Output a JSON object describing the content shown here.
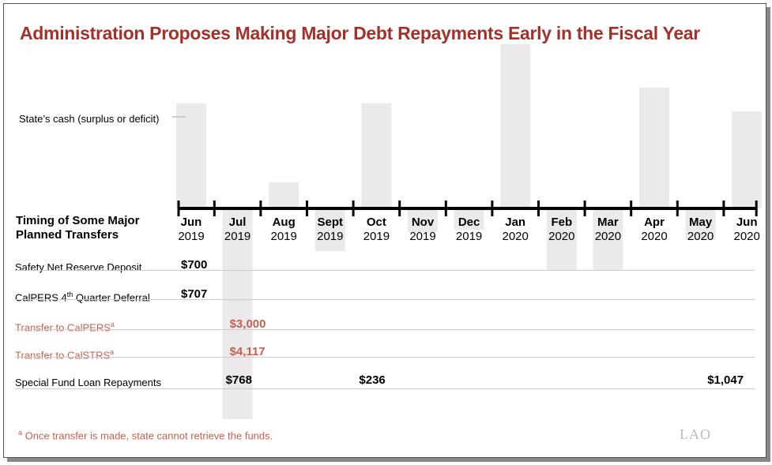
{
  "title": "Administration Proposes Making Major Debt Repayments Early in the Fiscal Year",
  "legend_label": "State’s cash (surplus or deficit)",
  "table_heading": [
    "Timing of Some Major",
    "Planned Transfers"
  ],
  "months": [
    {
      "m": "Jun",
      "y": "2019"
    },
    {
      "m": "Jul",
      "y": "2019"
    },
    {
      "m": "Aug",
      "y": "2019"
    },
    {
      "m": "Sept",
      "y": "2019"
    },
    {
      "m": "Oct",
      "y": "2019"
    },
    {
      "m": "Nov",
      "y": "2019"
    },
    {
      "m": "Dec",
      "y": "2019"
    },
    {
      "m": "Jan",
      "y": "2020"
    },
    {
      "m": "Feb",
      "y": "2020"
    },
    {
      "m": "Mar",
      "y": "2020"
    },
    {
      "m": "Apr",
      "y": "2020"
    },
    {
      "m": "May",
      "y": "2020"
    },
    {
      "m": "Jun",
      "y": "2020"
    }
  ],
  "rows": [
    {
      "label": "Safety Net Reserve Deposit",
      "sup": "",
      "color": "black",
      "values": {
        "0": "$700"
      }
    },
    {
      "label": "CalPERS 4",
      "sup": "th",
      "label_after": " Quarter Deferral",
      "color": "black",
      "values": {
        "0": "$707"
      }
    },
    {
      "label": "Transfer to CalPERS",
      "sup": "a",
      "color": "red",
      "values": {
        "1": "$3,000"
      }
    },
    {
      "label": "Transfer to CalSTRS",
      "sup": "a",
      "color": "red",
      "values": {
        "1": "$4,117"
      }
    },
    {
      "label": "Special Fund Loan Repayments",
      "sup": "",
      "color": "black",
      "values": {
        "1": "$768",
        "4": "$236",
        "12": "$1,047"
      }
    }
  ],
  "footnote_mark": "a",
  "footnote": "Once transfer is made, state cannot retrieve the funds.",
  "logo": "LAO",
  "colors": {
    "title": "#a3312a",
    "accent_red": "#c4604f",
    "bar": "#ebe9ec",
    "axis": "#000000"
  },
  "chart_data": {
    "type": "bar",
    "categories": [
      "Jun 2019",
      "Jul 2019",
      "Aug 2019",
      "Sept 2019",
      "Oct 2019",
      "Nov 2019",
      "Dec 2019",
      "Jan 2020",
      "Feb 2020",
      "Mar 2020",
      "Apr 2020",
      "May 2020",
      "Jun 2020"
    ],
    "values": [
      133,
      -267,
      33,
      -54,
      133,
      -30,
      -27,
      208,
      -78,
      -79,
      153,
      -40,
      123
    ],
    "series_label": "State’s cash (surplus or deficit)",
    "grid": false
  }
}
